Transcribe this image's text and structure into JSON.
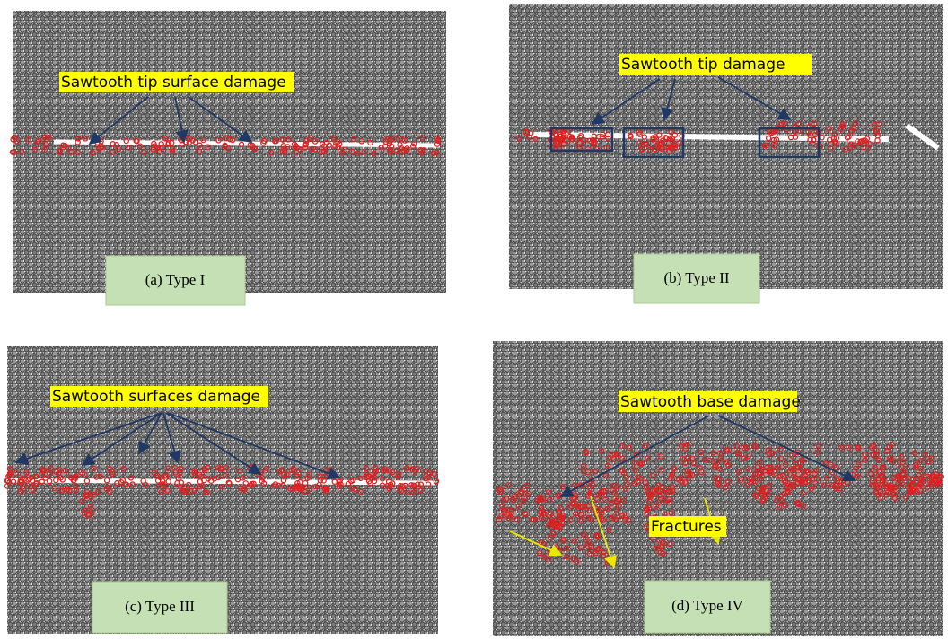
{
  "panels": [
    {
      "annotation": "Sawtooth tip surface damage",
      "caption": "(a) Type I"
    },
    {
      "annotation": "Sawtooth tip damage",
      "caption": "(b) Type II"
    },
    {
      "annotation": "Sawtooth surfaces damage",
      "caption": "(c) Type III"
    },
    {
      "annotation": "Sawtooth base damage",
      "caption": "(d) Type IV",
      "note": "Fractures"
    }
  ]
}
